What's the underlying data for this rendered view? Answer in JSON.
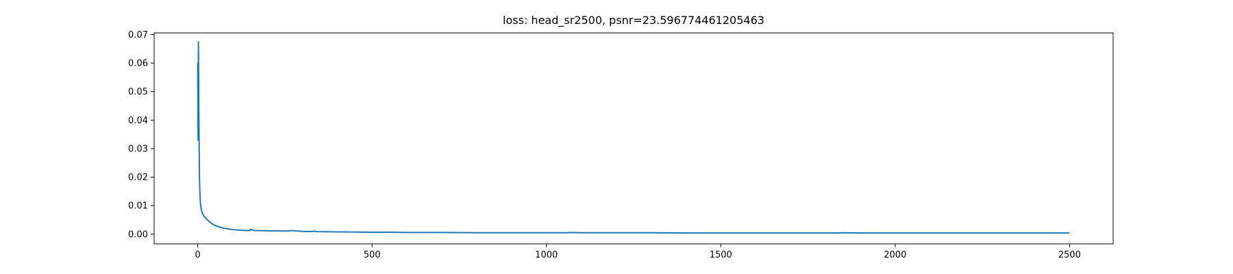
{
  "chart_data": {
    "type": "line",
    "title": "loss: head_sr2500, psnr=23.596774461205463",
    "xlabel": "",
    "ylabel": "",
    "xlim": [
      -125,
      2625
    ],
    "ylim": [
      -0.0034,
      0.0706
    ],
    "grid": false,
    "line_color": "#1f77b4",
    "x_ticks": [
      0,
      500,
      1000,
      1500,
      2000,
      2500
    ],
    "x_tick_labels": [
      "0",
      "500",
      "1000",
      "1500",
      "2000",
      "2500"
    ],
    "y_ticks": [
      0.0,
      0.01,
      0.02,
      0.03,
      0.04,
      0.05,
      0.06,
      0.07
    ],
    "y_tick_labels": [
      "0.00",
      "0.01",
      "0.02",
      "0.03",
      "0.04",
      "0.05",
      "0.06",
      "0.07"
    ],
    "series": [
      {
        "x": [
          0,
          1,
          2,
          3,
          4,
          5,
          6,
          8,
          10,
          13,
          17,
          22,
          28,
          35,
          45,
          55,
          65,
          75,
          85,
          100,
          120,
          140,
          150,
          152,
          155,
          160,
          200,
          250,
          262,
          265,
          300,
          330,
          333,
          340,
          400,
          500,
          550,
          600,
          700,
          800,
          900,
          1000,
          1060,
          1065,
          1100,
          1200,
          1300,
          1400,
          1500,
          1600,
          1700,
          1800,
          1840,
          1845,
          1900,
          2000,
          2100,
          2200,
          2300,
          2400,
          2500
        ],
        "y": [
          0.06,
          0.033,
          0.0675,
          0.045,
          0.032,
          0.02,
          0.015,
          0.0105,
          0.0088,
          0.0075,
          0.0065,
          0.0058,
          0.005,
          0.0042,
          0.0033,
          0.0028,
          0.0024,
          0.0021,
          0.0019,
          0.0016,
          0.0014,
          0.0013,
          0.0013,
          0.0017,
          0.0015,
          0.0013,
          0.0012,
          0.0011,
          0.0011,
          0.0013,
          0.001,
          0.0009,
          0.0011,
          0.0009,
          0.0008,
          0.0007,
          0.0007,
          0.0006,
          0.0006,
          0.0005,
          0.0005,
          0.0005,
          0.0005,
          0.0006,
          0.0005,
          0.0005,
          0.0005,
          0.0004,
          0.0004,
          0.0004,
          0.0004,
          0.0004,
          0.0004,
          0.0005,
          0.0004,
          0.0004,
          0.0004,
          0.0004,
          0.0004,
          0.0004,
          0.0004
        ]
      }
    ]
  }
}
